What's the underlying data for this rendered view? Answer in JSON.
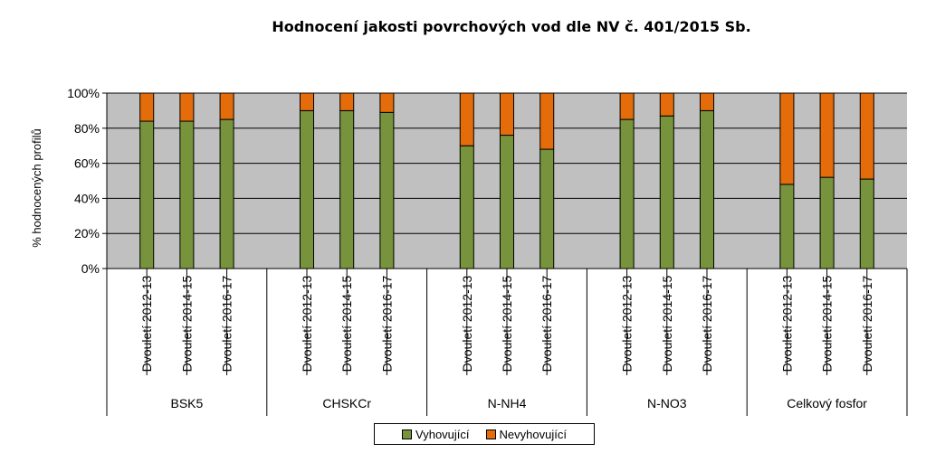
{
  "chart_data": {
    "type": "bar",
    "stacked": true,
    "percent_stacked": true,
    "title": "Hodnocení jakosti povrchových vod dle NV č. 401/2015 Sb.",
    "ylabel": "% hodnocených profilů",
    "ylim": [
      0,
      100
    ],
    "y_ticks": [
      "0%",
      "20%",
      "40%",
      "60%",
      "80%",
      "100%"
    ],
    "grid": true,
    "legend_position": "bottom",
    "plot_background": "#c0c0c0",
    "groups": [
      {
        "label": "BSK5",
        "categories": [
          "Dvouletí 2012-13",
          "Dvouletí 2014-15",
          "Dvouletí 2016-17"
        ]
      },
      {
        "label": "CHSKCr",
        "categories": [
          "Dvouletí 2012-13",
          "Dvouletí 2014-15",
          "Dvouletí 2016-17"
        ]
      },
      {
        "label": "N-NH4",
        "categories": [
          "Dvouletí 2012-13",
          "Dvouletí 2014-15",
          "Dvouletí 2016-17"
        ]
      },
      {
        "label": "N-NO3",
        "categories": [
          "Dvouletí 2012-13",
          "Dvouletí 2014-15",
          "Dvouletí 2016-17"
        ]
      },
      {
        "label": "Celkový fosfor",
        "categories": [
          "Dvouletí 2012-13",
          "Dvouletí 2014-15",
          "Dvouletí 2016-17"
        ]
      }
    ],
    "series": [
      {
        "name": "Vyhovující",
        "color": "#77933c",
        "values": [
          84,
          84,
          85,
          90,
          90,
          89,
          70,
          76,
          68,
          85,
          87,
          90,
          48,
          52,
          51
        ]
      },
      {
        "name": "Nevyhovující",
        "color": "#e46c0a",
        "values": [
          16,
          16,
          15,
          10,
          10,
          11,
          30,
          24,
          32,
          15,
          13,
          10,
          52,
          48,
          49
        ]
      }
    ]
  }
}
